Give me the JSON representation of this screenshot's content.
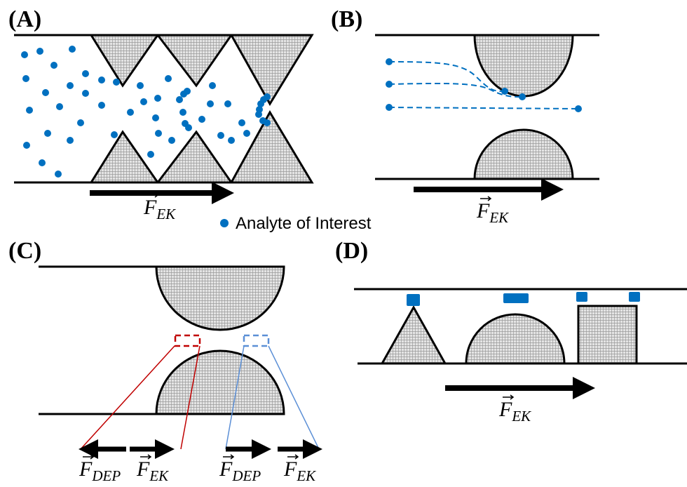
{
  "panels": [
    {
      "label": "(A)",
      "forces": [
        {
          "symbol": "F",
          "subscript": "EK"
        }
      ],
      "legend": "Analyte of Interest"
    },
    {
      "label": "(B)",
      "forces": [
        {
          "symbol": "F",
          "subscript": "EK"
        }
      ]
    },
    {
      "label": "(C)",
      "forces": [
        {
          "symbol": "F",
          "subscript": "DEP"
        },
        {
          "symbol": "F",
          "subscript": "EK"
        },
        {
          "symbol": "F",
          "subscript": "DEP"
        },
        {
          "symbol": "F",
          "subscript": "EK"
        }
      ]
    },
    {
      "label": "(D)",
      "forces": [
        {
          "symbol": "F",
          "subscript": "EK"
        }
      ]
    }
  ]
}
